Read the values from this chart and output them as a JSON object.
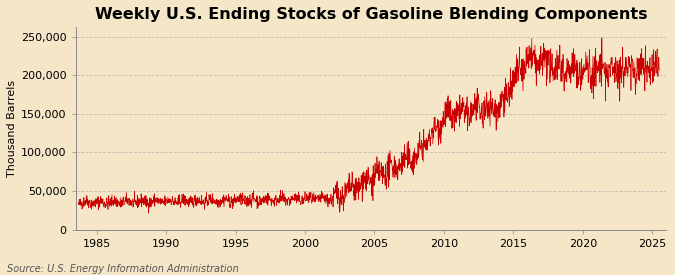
{
  "title": "Weekly U.S. Ending Stocks of Gasoline Blending Components",
  "ylabel": "Thousand Barrels",
  "source": "Source: U.S. Energy Information Administration",
  "background_color": "#f5e6c8",
  "line_color": "#cc0000",
  "grid_color": "#aaaaaa",
  "xlim": [
    1983.5,
    2026
  ],
  "ylim": [
    0,
    262000
  ],
  "xticks": [
    1985,
    1990,
    1995,
    2000,
    2005,
    2010,
    2015,
    2020,
    2025
  ],
  "yticks": [
    0,
    50000,
    100000,
    150000,
    200000,
    250000
  ],
  "ytick_labels": [
    "0",
    "50,000",
    "100,000",
    "150,000",
    "200,000",
    "250,000"
  ],
  "title_fontsize": 11.5,
  "label_fontsize": 8,
  "tick_fontsize": 8,
  "source_fontsize": 7,
  "seed": 42
}
